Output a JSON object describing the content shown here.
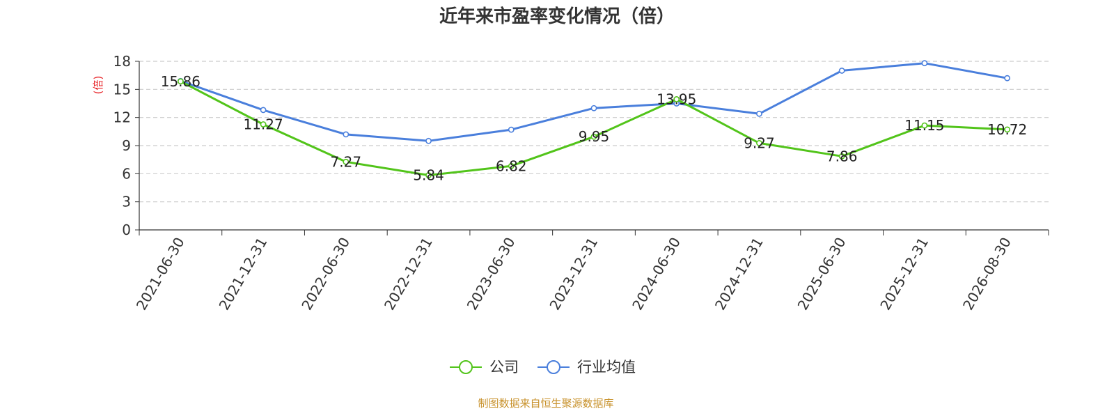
{
  "chart_data": {
    "type": "line",
    "title": "近年来市盈率变化情况（倍）",
    "ylabel": "(倍)",
    "ylim": [
      0,
      18
    ],
    "yticks": [
      0,
      3,
      6,
      9,
      12,
      15,
      18
    ],
    "categories": [
      "2021-06-30",
      "2021-12-31",
      "2022-06-30",
      "2022-12-31",
      "2023-06-30",
      "2023-12-31",
      "2024-06-30",
      "2024-12-31",
      "2025-06-30",
      "2025-12-31",
      "2026-08-30"
    ],
    "series": [
      {
        "name": "公司",
        "color": "#52c41a",
        "values": [
          15.86,
          11.27,
          7.27,
          5.84,
          6.82,
          9.95,
          13.95,
          9.27,
          7.86,
          11.15,
          10.72
        ],
        "labels": [
          "15.86",
          "11.27",
          "7.27",
          "5.84",
          "6.82",
          "9.95",
          "13.95",
          "9.27",
          "7.86",
          "11.15",
          "10.72"
        ]
      },
      {
        "name": "行业均值",
        "color": "#4a7fdc",
        "values": [
          15.9,
          12.8,
          10.2,
          9.5,
          10.7,
          13.0,
          13.5,
          12.4,
          17.0,
          17.8,
          16.2
        ]
      }
    ],
    "grid": true,
    "legend": "bottom-center",
    "source": "制图数据来自恒生聚源数据库"
  },
  "colors": {
    "unit_label": "#e8262a",
    "source_text": "#c8922c",
    "grid": "#cccccc",
    "axis": "#333333"
  }
}
